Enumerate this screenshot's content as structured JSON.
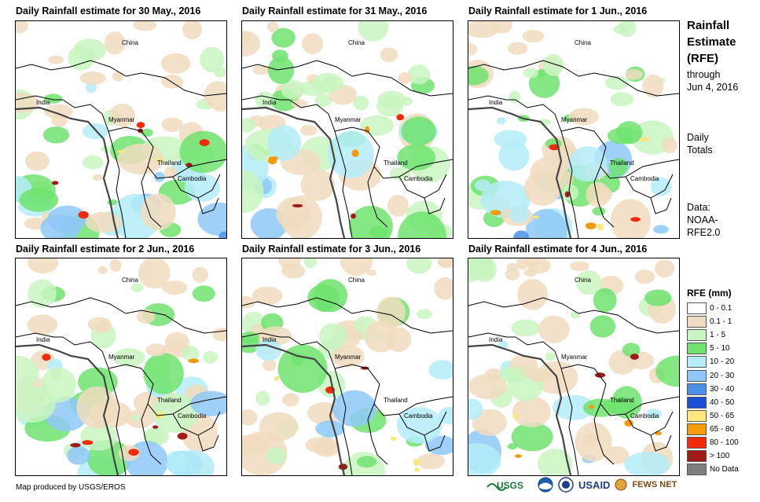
{
  "panels": [
    {
      "title": "Daily Rainfall estimate for 30 May., 2016",
      "labels": {
        "china": "China",
        "india": "India",
        "myanmar": "Myanmar",
        "thailand": "Thailand",
        "cambodia": "Cambodia"
      },
      "seed": 11,
      "wetness": 0.62
    },
    {
      "title": "Daily Rainfall estimate for 31 May., 2016",
      "labels": {
        "china": "China",
        "india": "India",
        "myanmar": "Myanmar",
        "thailand": "Thailand",
        "cambodia": "Cambodia"
      },
      "seed": 23,
      "wetness": 0.55
    },
    {
      "title": "Daily Rainfall estimate for 1 Jun., 2016",
      "labels": {
        "china": "China",
        "india": "India",
        "myanmar": "Myanmar",
        "thailand": "Thailand",
        "cambodia": "Cambodia"
      },
      "seed": 37,
      "wetness": 0.6
    },
    {
      "title": "Daily Rainfall estimate for 2 Jun., 2016",
      "labels": {
        "china": "China",
        "india": "India",
        "myanmar": "Myanmar",
        "thailand": "Thailand",
        "cambodia": "Cambodia"
      },
      "seed": 41,
      "wetness": 0.66
    },
    {
      "title": "Daily Rainfall estimate for 3 Jun., 2016",
      "labels": {
        "china": "China",
        "india": "India",
        "myanmar": "Myanmar",
        "thailand": "Thailand",
        "cambodia": "Cambodia"
      },
      "seed": 53,
      "wetness": 0.58
    },
    {
      "title": "Daily Rainfall estimate for 4 Jun., 2016",
      "labels": {
        "china": "China",
        "india": "India",
        "myanmar": "Myanmar",
        "thailand": "Thailand",
        "cambodia": "Cambodia"
      },
      "seed": 67,
      "wetness": 0.52
    }
  ],
  "sidebar": {
    "title_lines": [
      "Rainfall",
      "Estimate",
      "(RFE)"
    ],
    "through": "through",
    "date": "Jun 4, 2016",
    "daily": "Daily",
    "totals": "Totals",
    "data_label": "Data:",
    "data_source_1": "NOAA-",
    "data_source_2": "RFE2.0"
  },
  "legend": {
    "title": "RFE (mm)",
    "items": [
      {
        "label": "0 - 0.1",
        "color": "#ffffff"
      },
      {
        "label": "0.1 - 1",
        "color": "#f0dcbe"
      },
      {
        "label": "1 - 5",
        "color": "#c8f5c0"
      },
      {
        "label": "5 - 10",
        "color": "#6fe36f"
      },
      {
        "label": "10 - 20",
        "color": "#b4ecf8"
      },
      {
        "label": "20 - 30",
        "color": "#8ec8f6"
      },
      {
        "label": "30 - 40",
        "color": "#4a90e8"
      },
      {
        "label": "40 - 50",
        "color": "#1a4fd6"
      },
      {
        "label": "50 - 65",
        "color": "#fbe77e"
      },
      {
        "label": "65 - 80",
        "color": "#f59a0a"
      },
      {
        "label": "80 - 100",
        "color": "#f02a0a"
      },
      {
        "label": "> 100",
        "color": "#a01a1a"
      },
      {
        "label": "No Data",
        "color": "#7f7f7f"
      }
    ]
  },
  "footer": {
    "credit": "Map produced by USGS/EROS"
  },
  "logos": {
    "usgs": "USGS",
    "usaid": "USAID",
    "fewsnet": "FEWS NET"
  }
}
